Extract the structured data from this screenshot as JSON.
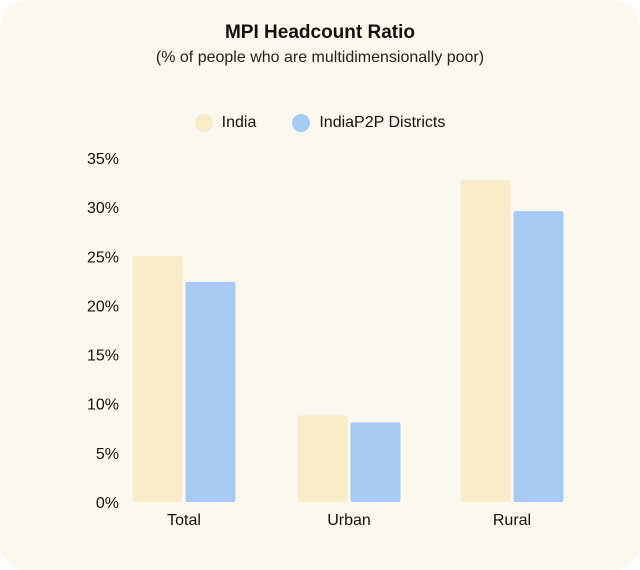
{
  "chart_data": {
    "type": "bar",
    "title": "MPI Headcount Ratio",
    "subtitle": "(% of people who are multidimensionally poor)",
    "xlabel": "",
    "ylabel": "",
    "categories": [
      "Total",
      "Urban",
      "Rural"
    ],
    "series": [
      {
        "name": "India",
        "color": "#faecc9",
        "values": [
          25.0,
          8.8,
          32.8
        ]
      },
      {
        "name": "IndiaP2P Districts",
        "color": "#a8cbf6",
        "values": [
          22.4,
          8.1,
          29.6
        ]
      }
    ],
    "ylim": [
      0,
      35
    ],
    "yticks": [
      "0%",
      "5%",
      "10%",
      "15%",
      "20%",
      "25%",
      "30%",
      "35%"
    ],
    "ytick_values": [
      0,
      5,
      10,
      15,
      20,
      25,
      30,
      35
    ],
    "grid": false,
    "legend_position": "top-center"
  }
}
